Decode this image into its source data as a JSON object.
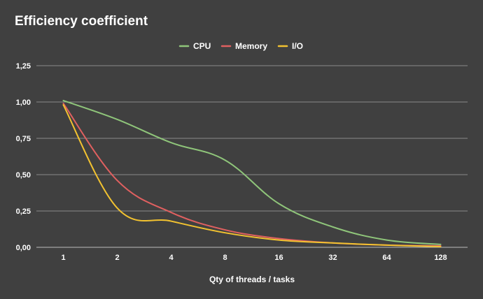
{
  "chart_data": {
    "type": "line",
    "title": "Efficiency coefficient",
    "xlabel": "Qty of threads / tasks",
    "ylabel": "",
    "categories": [
      "1",
      "2",
      "4",
      "8",
      "16",
      "32",
      "64",
      "128"
    ],
    "y_tick_labels": [
      "0,00",
      "0,25",
      "0,50",
      "0,75",
      "1,00",
      "1,25"
    ],
    "ylim": [
      0,
      1.25
    ],
    "grid": true,
    "legend_position": "top-center",
    "series": [
      {
        "name": "CPU",
        "color": "#8fc57a",
        "values": [
          1.01,
          0.88,
          0.72,
          0.6,
          0.3,
          0.14,
          0.05,
          0.02
        ]
      },
      {
        "name": "Memory",
        "color": "#e06060",
        "values": [
          0.99,
          0.46,
          0.24,
          0.12,
          0.06,
          0.03,
          0.015,
          0.01
        ]
      },
      {
        "name": "I/O",
        "color": "#f2c230",
        "values": [
          0.98,
          0.27,
          0.18,
          0.1,
          0.05,
          0.03,
          0.015,
          0.005
        ]
      }
    ]
  }
}
